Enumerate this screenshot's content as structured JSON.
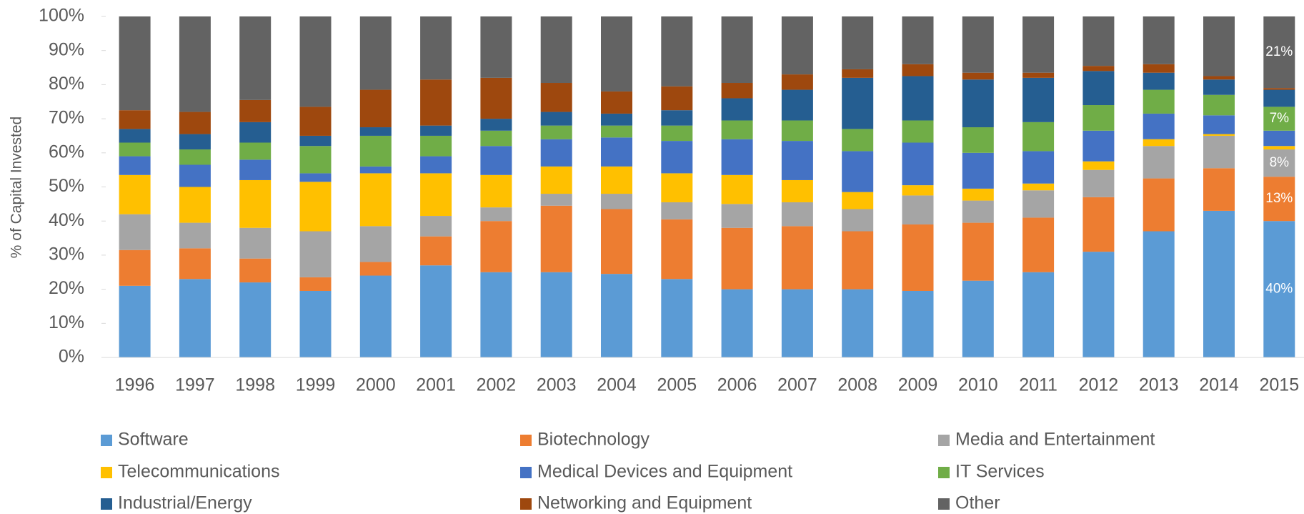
{
  "chart_data": {
    "type": "stacked_bar",
    "y_label": "% of Capital Invested",
    "categories": [
      "1996",
      "1997",
      "1998",
      "1999",
      "2000",
      "2001",
      "2002",
      "2003",
      "2004",
      "2005",
      "2006",
      "2007",
      "2008",
      "2009",
      "2010",
      "2011",
      "2012",
      "2013",
      "2014",
      "2015"
    ],
    "ylim": [
      0,
      100
    ],
    "yticks": [
      {
        "value": 0,
        "label": "0%"
      },
      {
        "value": 10,
        "label": "10%"
      },
      {
        "value": 20,
        "label": "20%"
      },
      {
        "value": 30,
        "label": "30%"
      },
      {
        "value": 40,
        "label": "40%"
      },
      {
        "value": 50,
        "label": "50%"
      },
      {
        "value": 60,
        "label": "60%"
      },
      {
        "value": 70,
        "label": "70%"
      },
      {
        "value": 80,
        "label": "80%"
      },
      {
        "value": 90,
        "label": "90%"
      },
      {
        "value": 100,
        "label": "100%"
      }
    ],
    "grid": false,
    "legend": "bottom",
    "series": [
      {
        "name": "Software",
        "color": "#5b9bd5",
        "values": [
          21,
          23,
          22,
          19.5,
          24,
          27,
          25,
          25,
          24.5,
          23,
          20,
          20,
          20,
          19.5,
          22.5,
          25,
          31,
          37,
          43,
          40
        ],
        "value_labels": [
          null,
          null,
          null,
          null,
          null,
          null,
          null,
          null,
          null,
          null,
          null,
          null,
          null,
          null,
          null,
          null,
          null,
          null,
          null,
          "40%"
        ]
      },
      {
        "name": "Biotechnology",
        "color": "#ed7d31",
        "values": [
          10.5,
          9,
          7,
          4,
          4,
          8.5,
          15,
          19.5,
          19,
          17.5,
          18,
          18.5,
          17,
          19.5,
          17,
          16,
          16,
          15.5,
          12.5,
          13
        ],
        "value_labels": [
          null,
          null,
          null,
          null,
          null,
          null,
          null,
          null,
          null,
          null,
          null,
          null,
          null,
          null,
          null,
          null,
          null,
          null,
          null,
          "13%"
        ]
      },
      {
        "name": "Media and Entertainment",
        "color": "#a5a5a5",
        "values": [
          10.5,
          7.5,
          9,
          13.5,
          10.5,
          6,
          4,
          3.5,
          4.5,
          5,
          7,
          7,
          6.5,
          8.5,
          6.5,
          8,
          8,
          9.5,
          9.5,
          8
        ],
        "value_labels": [
          null,
          null,
          null,
          null,
          null,
          null,
          null,
          null,
          null,
          null,
          null,
          null,
          null,
          null,
          null,
          null,
          null,
          null,
          null,
          "8%"
        ]
      },
      {
        "name": "Telecommunications",
        "color": "#ffc000",
        "values": [
          11.5,
          10.5,
          14,
          14.5,
          15.5,
          12.5,
          9.5,
          8,
          8,
          8.5,
          8.5,
          6.5,
          5,
          3,
          3.5,
          2,
          2.5,
          2,
          0.5,
          1
        ]
      },
      {
        "name": "Medical Devices and Equipment",
        "color": "#4472c4",
        "values": [
          5.5,
          6.5,
          6,
          2.5,
          2,
          5,
          8.5,
          8,
          8.5,
          9.5,
          10.5,
          11.5,
          12,
          12.5,
          10.5,
          9.5,
          9,
          7.5,
          5.5,
          4.5
        ]
      },
      {
        "name": "IT Services",
        "color": "#70ad47",
        "values": [
          4,
          4.5,
          5,
          8,
          9,
          6,
          4.5,
          4,
          3.5,
          4.5,
          5.5,
          6,
          6.5,
          6.5,
          7.5,
          8.5,
          7.5,
          7,
          6,
          7
        ],
        "value_labels": [
          null,
          null,
          null,
          null,
          null,
          null,
          null,
          null,
          null,
          null,
          null,
          null,
          null,
          null,
          null,
          null,
          null,
          null,
          null,
          "7%"
        ]
      },
      {
        "name": "Industrial/Energy",
        "color": "#255e91",
        "values": [
          4,
          4.5,
          6,
          3,
          2.5,
          3,
          3.5,
          4,
          3.5,
          4.5,
          6.5,
          9,
          15,
          13,
          14,
          13,
          10,
          5,
          4.5,
          5
        ]
      },
      {
        "name": "Networking and Equipment",
        "color": "#9e480e",
        "values": [
          5.5,
          6.5,
          6.5,
          8.5,
          11,
          13.5,
          12,
          8.5,
          6.5,
          7,
          4.5,
          4.5,
          2.5,
          3.5,
          2,
          1.5,
          1.5,
          2.5,
          1,
          0.5
        ]
      },
      {
        "name": "Other",
        "color": "#636363",
        "values": [
          27.5,
          28,
          24.5,
          26.5,
          21.5,
          18.5,
          18,
          19.5,
          22,
          20.5,
          19.5,
          17,
          15.5,
          14,
          16.5,
          16.5,
          14.5,
          14,
          17.5,
          21
        ],
        "value_labels": [
          null,
          null,
          null,
          null,
          null,
          null,
          null,
          null,
          null,
          null,
          null,
          null,
          null,
          null,
          null,
          null,
          null,
          null,
          null,
          "21%"
        ]
      }
    ]
  }
}
